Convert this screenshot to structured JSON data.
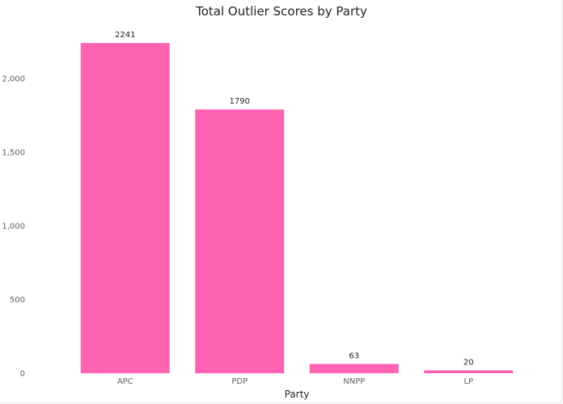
{
  "chart_data": {
    "type": "bar",
    "title": "Total Outlier Scores by Party",
    "xlabel": "Party",
    "ylabel": "",
    "categories": [
      "APC",
      "PDP",
      "NNPP",
      "LP"
    ],
    "values": [
      2241,
      1790,
      63,
      20
    ],
    "data_labels": [
      "2241",
      "1790",
      "63",
      "20"
    ],
    "yticks": [
      0,
      500,
      1000,
      1500,
      2000
    ],
    "ytick_labels": [
      "0",
      "500",
      "1,000",
      "1,500",
      "2,000"
    ],
    "ylim": [
      0,
      2300
    ],
    "grid": false,
    "legend": "none",
    "bar_color": "#FF62B2"
  }
}
